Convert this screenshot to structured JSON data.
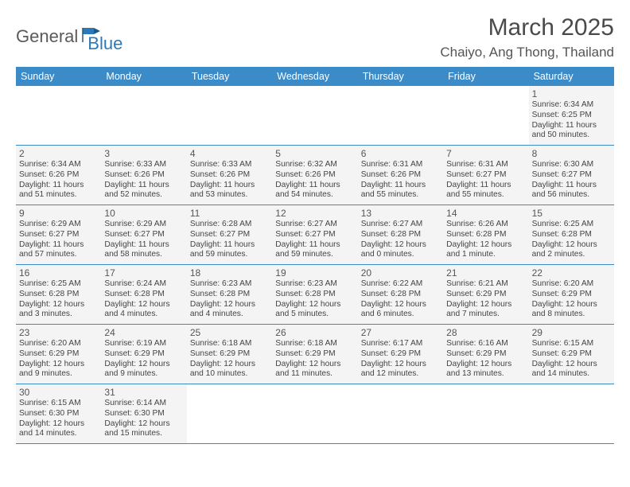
{
  "logo": {
    "general": "General",
    "blue": "Blue"
  },
  "title": "March 2025",
  "location": "Chaiyo, Ang Thong, Thailand",
  "dayNames": [
    "Sunday",
    "Monday",
    "Tuesday",
    "Wednesday",
    "Thursday",
    "Friday",
    "Saturday"
  ],
  "colors": {
    "headerBg": "#3b8bc9",
    "headerText": "#ffffff",
    "cellBg": "#f4f4f4",
    "text": "#444444",
    "logoBlue": "#2a7ab9"
  },
  "grid": [
    [
      {
        "empty": true
      },
      {
        "empty": true
      },
      {
        "empty": true
      },
      {
        "empty": true
      },
      {
        "empty": true
      },
      {
        "empty": true
      },
      {
        "day": "1",
        "sunrise": "Sunrise: 6:34 AM",
        "sunset": "Sunset: 6:25 PM",
        "daylight": "Daylight: 11 hours and 50 minutes."
      }
    ],
    [
      {
        "day": "2",
        "sunrise": "Sunrise: 6:34 AM",
        "sunset": "Sunset: 6:26 PM",
        "daylight": "Daylight: 11 hours and 51 minutes."
      },
      {
        "day": "3",
        "sunrise": "Sunrise: 6:33 AM",
        "sunset": "Sunset: 6:26 PM",
        "daylight": "Daylight: 11 hours and 52 minutes."
      },
      {
        "day": "4",
        "sunrise": "Sunrise: 6:33 AM",
        "sunset": "Sunset: 6:26 PM",
        "daylight": "Daylight: 11 hours and 53 minutes."
      },
      {
        "day": "5",
        "sunrise": "Sunrise: 6:32 AM",
        "sunset": "Sunset: 6:26 PM",
        "daylight": "Daylight: 11 hours and 54 minutes."
      },
      {
        "day": "6",
        "sunrise": "Sunrise: 6:31 AM",
        "sunset": "Sunset: 6:26 PM",
        "daylight": "Daylight: 11 hours and 55 minutes."
      },
      {
        "day": "7",
        "sunrise": "Sunrise: 6:31 AM",
        "sunset": "Sunset: 6:27 PM",
        "daylight": "Daylight: 11 hours and 55 minutes."
      },
      {
        "day": "8",
        "sunrise": "Sunrise: 6:30 AM",
        "sunset": "Sunset: 6:27 PM",
        "daylight": "Daylight: 11 hours and 56 minutes."
      }
    ],
    [
      {
        "day": "9",
        "sunrise": "Sunrise: 6:29 AM",
        "sunset": "Sunset: 6:27 PM",
        "daylight": "Daylight: 11 hours and 57 minutes."
      },
      {
        "day": "10",
        "sunrise": "Sunrise: 6:29 AM",
        "sunset": "Sunset: 6:27 PM",
        "daylight": "Daylight: 11 hours and 58 minutes."
      },
      {
        "day": "11",
        "sunrise": "Sunrise: 6:28 AM",
        "sunset": "Sunset: 6:27 PM",
        "daylight": "Daylight: 11 hours and 59 minutes."
      },
      {
        "day": "12",
        "sunrise": "Sunrise: 6:27 AM",
        "sunset": "Sunset: 6:27 PM",
        "daylight": "Daylight: 11 hours and 59 minutes."
      },
      {
        "day": "13",
        "sunrise": "Sunrise: 6:27 AM",
        "sunset": "Sunset: 6:28 PM",
        "daylight": "Daylight: 12 hours and 0 minutes."
      },
      {
        "day": "14",
        "sunrise": "Sunrise: 6:26 AM",
        "sunset": "Sunset: 6:28 PM",
        "daylight": "Daylight: 12 hours and 1 minute."
      },
      {
        "day": "15",
        "sunrise": "Sunrise: 6:25 AM",
        "sunset": "Sunset: 6:28 PM",
        "daylight": "Daylight: 12 hours and 2 minutes."
      }
    ],
    [
      {
        "day": "16",
        "sunrise": "Sunrise: 6:25 AM",
        "sunset": "Sunset: 6:28 PM",
        "daylight": "Daylight: 12 hours and 3 minutes."
      },
      {
        "day": "17",
        "sunrise": "Sunrise: 6:24 AM",
        "sunset": "Sunset: 6:28 PM",
        "daylight": "Daylight: 12 hours and 4 minutes."
      },
      {
        "day": "18",
        "sunrise": "Sunrise: 6:23 AM",
        "sunset": "Sunset: 6:28 PM",
        "daylight": "Daylight: 12 hours and 4 minutes."
      },
      {
        "day": "19",
        "sunrise": "Sunrise: 6:23 AM",
        "sunset": "Sunset: 6:28 PM",
        "daylight": "Daylight: 12 hours and 5 minutes."
      },
      {
        "day": "20",
        "sunrise": "Sunrise: 6:22 AM",
        "sunset": "Sunset: 6:28 PM",
        "daylight": "Daylight: 12 hours and 6 minutes."
      },
      {
        "day": "21",
        "sunrise": "Sunrise: 6:21 AM",
        "sunset": "Sunset: 6:29 PM",
        "daylight": "Daylight: 12 hours and 7 minutes."
      },
      {
        "day": "22",
        "sunrise": "Sunrise: 6:20 AM",
        "sunset": "Sunset: 6:29 PM",
        "daylight": "Daylight: 12 hours and 8 minutes."
      }
    ],
    [
      {
        "day": "23",
        "sunrise": "Sunrise: 6:20 AM",
        "sunset": "Sunset: 6:29 PM",
        "daylight": "Daylight: 12 hours and 9 minutes."
      },
      {
        "day": "24",
        "sunrise": "Sunrise: 6:19 AM",
        "sunset": "Sunset: 6:29 PM",
        "daylight": "Daylight: 12 hours and 9 minutes."
      },
      {
        "day": "25",
        "sunrise": "Sunrise: 6:18 AM",
        "sunset": "Sunset: 6:29 PM",
        "daylight": "Daylight: 12 hours and 10 minutes."
      },
      {
        "day": "26",
        "sunrise": "Sunrise: 6:18 AM",
        "sunset": "Sunset: 6:29 PM",
        "daylight": "Daylight: 12 hours and 11 minutes."
      },
      {
        "day": "27",
        "sunrise": "Sunrise: 6:17 AM",
        "sunset": "Sunset: 6:29 PM",
        "daylight": "Daylight: 12 hours and 12 minutes."
      },
      {
        "day": "28",
        "sunrise": "Sunrise: 6:16 AM",
        "sunset": "Sunset: 6:29 PM",
        "daylight": "Daylight: 12 hours and 13 minutes."
      },
      {
        "day": "29",
        "sunrise": "Sunrise: 6:15 AM",
        "sunset": "Sunset: 6:29 PM",
        "daylight": "Daylight: 12 hours and 14 minutes."
      }
    ],
    [
      {
        "day": "30",
        "sunrise": "Sunrise: 6:15 AM",
        "sunset": "Sunset: 6:30 PM",
        "daylight": "Daylight: 12 hours and 14 minutes."
      },
      {
        "day": "31",
        "sunrise": "Sunrise: 6:14 AM",
        "sunset": "Sunset: 6:30 PM",
        "daylight": "Daylight: 12 hours and 15 minutes."
      },
      {
        "empty": true
      },
      {
        "empty": true
      },
      {
        "empty": true
      },
      {
        "empty": true
      },
      {
        "empty": true
      }
    ]
  ]
}
